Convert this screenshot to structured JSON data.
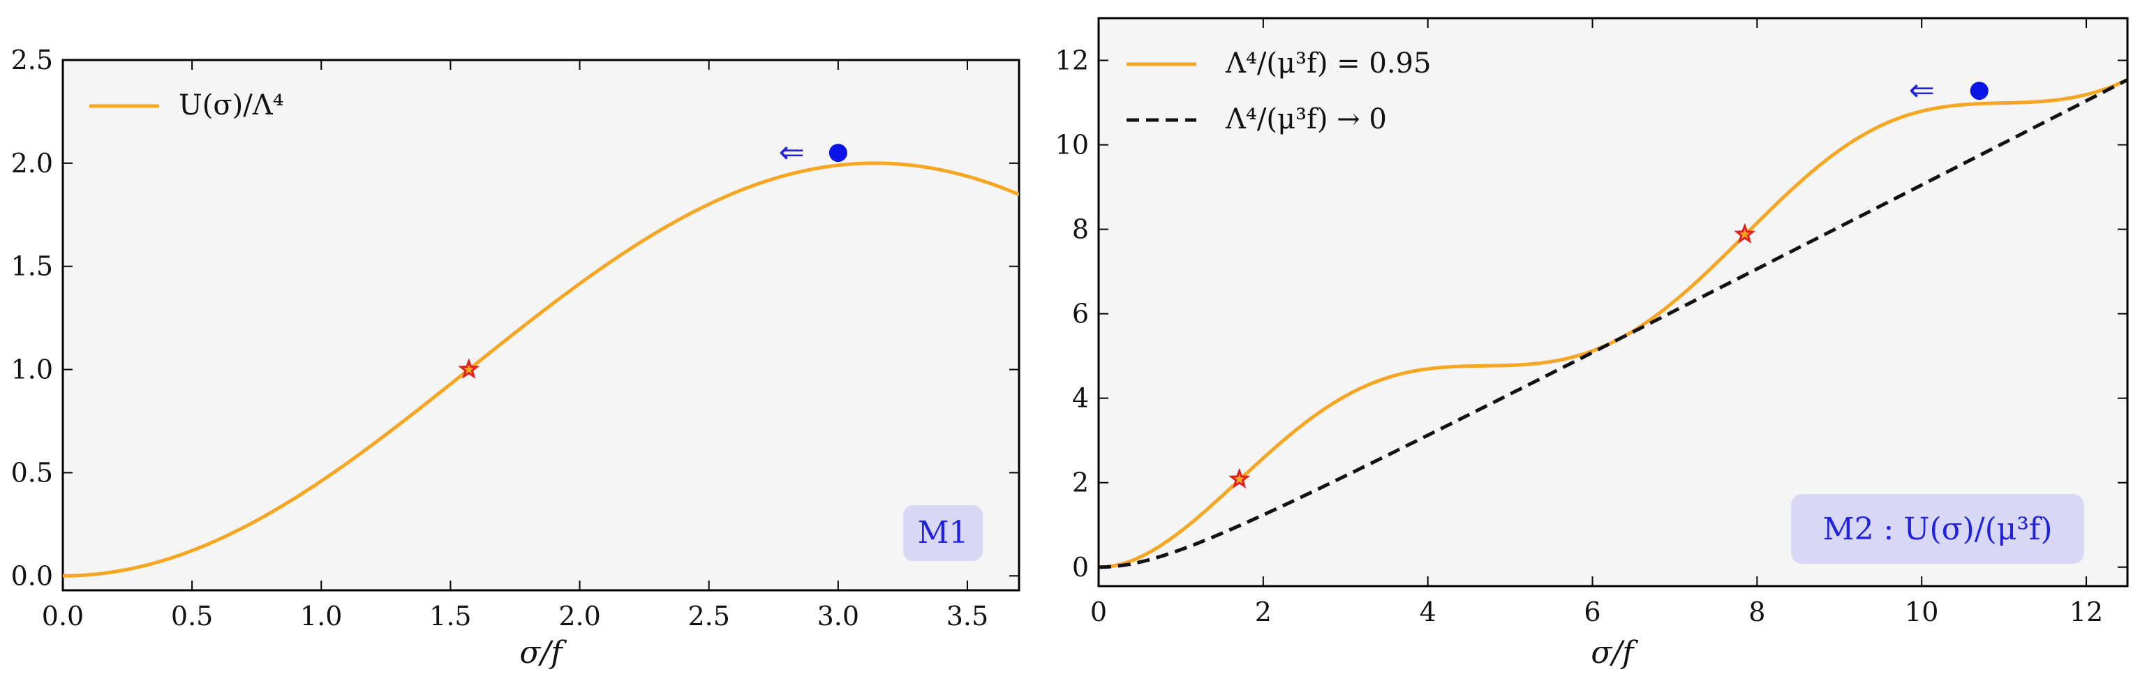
{
  "chart_data": [
    {
      "type": "line",
      "id": "M1",
      "xlabel": "σ/f",
      "ylabel": "",
      "xlim": [
        0,
        3.7
      ],
      "ylim": [
        -0.07,
        2.5
      ],
      "xticks": [
        0.0,
        0.5,
        1.0,
        1.5,
        2.0,
        2.5,
        3.0,
        3.5
      ],
      "xtick_labels": [
        "0.0",
        "0.5",
        "1.0",
        "1.5",
        "2.0",
        "2.5",
        "3.0",
        "3.5"
      ],
      "yticks": [
        0.0,
        0.5,
        1.0,
        1.5,
        2.0,
        2.5
      ],
      "ytick_labels": [
        "0.0",
        "0.5",
        "1.0",
        "1.5",
        "2.0",
        "2.5"
      ],
      "series": [
        {
          "name": "U(σ)/Λ⁴",
          "color": "#f5a623",
          "style": "solid",
          "formula": "1 - cos(x)"
        }
      ],
      "markers": [
        {
          "kind": "star",
          "x": 1.571,
          "y": 1.0,
          "color": "#e02020"
        },
        {
          "kind": "dot",
          "x": 3.0,
          "y": 2.05,
          "color": "#0a14e6"
        }
      ],
      "arrow": {
        "symbol": "⇐",
        "x": 2.82,
        "y": 2.05
      },
      "badge": {
        "text": "M1",
        "position": "bottom-right"
      },
      "legend_position": "top-left",
      "grid": false
    },
    {
      "type": "line",
      "id": "M2",
      "xlabel": "σ/f",
      "ylabel": "",
      "xlim": [
        0,
        12.5
      ],
      "ylim": [
        -0.45,
        13
      ],
      "xticks": [
        0,
        2,
        4,
        6,
        8,
        10,
        12
      ],
      "xtick_labels": [
        "0",
        "2",
        "4",
        "6",
        "8",
        "10",
        "12"
      ],
      "yticks": [
        0,
        2,
        4,
        6,
        8,
        10,
        12
      ],
      "ytick_labels": [
        "0",
        "2",
        "4",
        "6",
        "8",
        "10",
        "12"
      ],
      "series": [
        {
          "name": "Λ⁴/(μ³f) = 0.95",
          "color": "#f5a623",
          "style": "solid",
          "formula": "sqrt(1+x^2) - 1 + 0.95*(1 - cos(x))"
        },
        {
          "name": "Λ⁴/(μ³f) → 0",
          "color": "#111111",
          "style": "dashed",
          "formula": "sqrt(1+x^2) - 1"
        }
      ],
      "markers": [
        {
          "kind": "star",
          "x": 1.71,
          "y": 2.08,
          "color": "#e02020"
        },
        {
          "kind": "star",
          "x": 7.85,
          "y": 7.88,
          "color": "#e02020"
        },
        {
          "kind": "dot",
          "x": 10.7,
          "y": 11.28,
          "color": "#0a14e6"
        }
      ],
      "arrow": {
        "symbol": "⇐",
        "x": 10.0,
        "y": 11.28
      },
      "badge": {
        "text": "M2 : U(σ)/(μ³f)",
        "position": "bottom-right"
      },
      "legend_position": "top-left",
      "grid": false
    }
  ]
}
